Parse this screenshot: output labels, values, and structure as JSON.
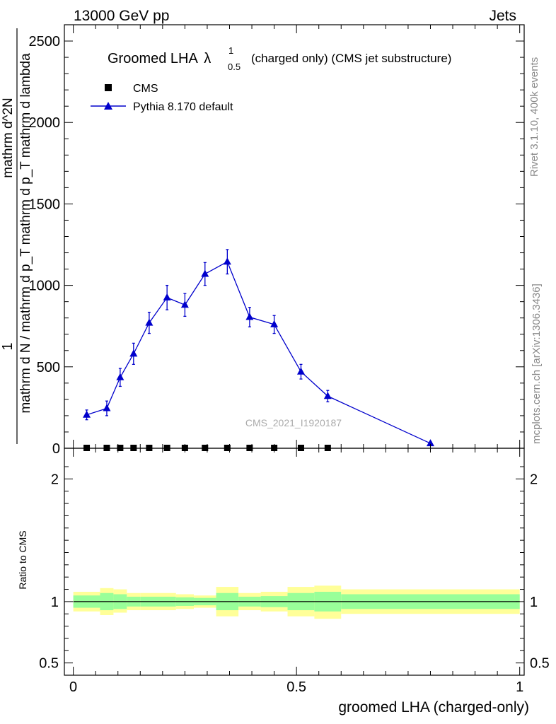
{
  "header": {
    "left": "13000 GeV pp",
    "right": "Jets"
  },
  "side_labels": {
    "rivet": "Rivet 3.1.10,  400k events",
    "mcplots": "mcplots.cern.ch [arXiv:1306.3436]"
  },
  "chart_data": [
    {
      "type": "line",
      "panel": "main",
      "title_main": "Groomed LHA",
      "title_lambda": "λ",
      "title_sup": "1",
      "title_sub": "0.5",
      "title_rest": "(charged only) (CMS jet substructure)",
      "watermark": "CMS_2021_I1920187",
      "ylabel_line1": "1",
      "ylabel_line2": "mathrm d N / mathrm d p_T mathrm d p_T mathrm d lambda",
      "ylabel_line3": "mathrm d^2N",
      "ylim": [
        0,
        2600
      ],
      "xlim": [
        -0.02,
        1.01
      ],
      "y_ticks": [
        0,
        500,
        1000,
        1500,
        2000,
        2500
      ],
      "y_tick_labels": [
        "0",
        "500",
        "1000",
        "1500",
        "2000",
        "2500"
      ],
      "legend": [
        {
          "name": "CMS",
          "marker": "square"
        },
        {
          "name": "Pythia 8.170 default",
          "marker": "triangle"
        }
      ],
      "series": [
        {
          "name": "CMS",
          "color": "#000000",
          "x": [
            0.03,
            0.075,
            0.105,
            0.135,
            0.17,
            0.21,
            0.25,
            0.295,
            0.345,
            0.395,
            0.45,
            0.51,
            0.57
          ],
          "y": [
            0,
            0,
            0,
            0,
            0,
            0,
            0,
            0,
            0,
            0,
            0,
            0,
            0
          ]
        },
        {
          "name": "Pythia 8.170 default",
          "color": "#0000cc",
          "x": [
            0.03,
            0.075,
            0.105,
            0.135,
            0.17,
            0.21,
            0.25,
            0.295,
            0.345,
            0.395,
            0.45,
            0.51,
            0.57,
            0.8
          ],
          "y": [
            205,
            245,
            435,
            580,
            770,
            925,
            880,
            1070,
            1145,
            805,
            760,
            470,
            320,
            30
          ],
          "err": [
            30,
            45,
            55,
            65,
            65,
            75,
            70,
            70,
            75,
            60,
            55,
            45,
            35,
            10
          ]
        }
      ]
    },
    {
      "type": "area",
      "panel": "ratio",
      "ylabel": "Ratio to CMS",
      "ylim": [
        0.4,
        2.25
      ],
      "xlim": [
        -0.02,
        1.01
      ],
      "y_ticks": [
        0.5,
        1,
        2
      ],
      "y_tick_labels": [
        "0.5",
        "1",
        "2"
      ],
      "x_ticks": [
        0,
        0.5,
        1
      ],
      "x_tick_labels": [
        "0",
        "0.5",
        "1"
      ],
      "xlabel": "groomed LHA (charged-only)",
      "bins": [
        {
          "lo": 0.0,
          "hi": 0.06,
          "inner": [
            0.95,
            1.05
          ],
          "outer": [
            0.92,
            1.08
          ]
        },
        {
          "lo": 0.06,
          "hi": 0.09,
          "inner": [
            0.93,
            1.07
          ],
          "outer": [
            0.89,
            1.11
          ]
        },
        {
          "lo": 0.09,
          "hi": 0.12,
          "inner": [
            0.94,
            1.06
          ],
          "outer": [
            0.91,
            1.1
          ]
        },
        {
          "lo": 0.12,
          "hi": 0.15,
          "inner": [
            0.96,
            1.04
          ],
          "outer": [
            0.93,
            1.07
          ]
        },
        {
          "lo": 0.15,
          "hi": 0.23,
          "inner": [
            0.96,
            1.04
          ],
          "outer": [
            0.93,
            1.07
          ]
        },
        {
          "lo": 0.23,
          "hi": 0.27,
          "inner": [
            0.965,
            1.035
          ],
          "outer": [
            0.94,
            1.06
          ]
        },
        {
          "lo": 0.27,
          "hi": 0.32,
          "inner": [
            0.97,
            1.03
          ],
          "outer": [
            0.95,
            1.05
          ]
        },
        {
          "lo": 0.32,
          "hi": 0.37,
          "inner": [
            0.93,
            1.07
          ],
          "outer": [
            0.88,
            1.12
          ]
        },
        {
          "lo": 0.37,
          "hi": 0.42,
          "inner": [
            0.96,
            1.04
          ],
          "outer": [
            0.93,
            1.07
          ]
        },
        {
          "lo": 0.42,
          "hi": 0.48,
          "inner": [
            0.955,
            1.045
          ],
          "outer": [
            0.92,
            1.08
          ]
        },
        {
          "lo": 0.48,
          "hi": 0.54,
          "inner": [
            0.93,
            1.07
          ],
          "outer": [
            0.88,
            1.12
          ]
        },
        {
          "lo": 0.54,
          "hi": 0.6,
          "inner": [
            0.92,
            1.08
          ],
          "outer": [
            0.86,
            1.13
          ]
        },
        {
          "lo": 0.6,
          "hi": 1.0,
          "inner": [
            0.94,
            1.06
          ],
          "outer": [
            0.9,
            1.1
          ]
        }
      ],
      "inner_color": "#99ff99",
      "outer_color": "#ffff99",
      "line_value": 1
    }
  ]
}
